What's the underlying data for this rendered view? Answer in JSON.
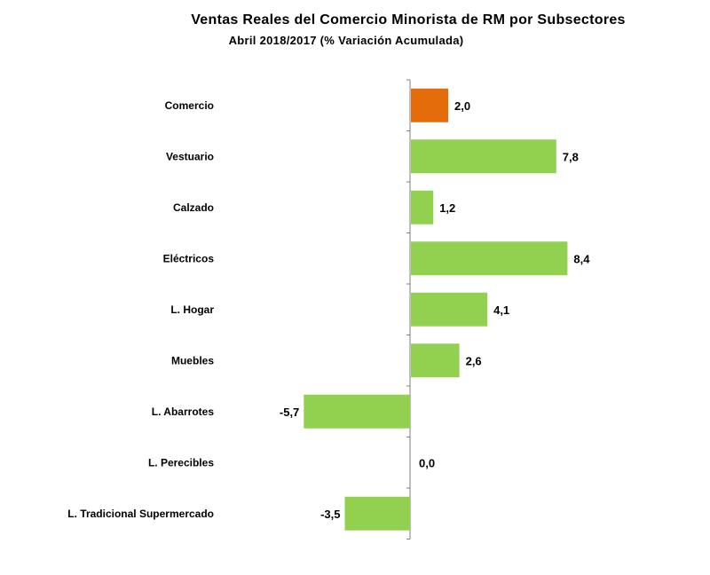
{
  "chart_data": {
    "type": "bar",
    "orientation": "horizontal",
    "title": "Ventas Reales del Comercio Minorista de RM por Subsectores",
    "subtitle": "Abril    2018/2017 (% Variación Acumulada)",
    "categories": [
      "Comercio",
      "Vestuario",
      "Calzado",
      "Eléctricos",
      "L. Hogar",
      "Muebles",
      "L. Abarrotes",
      "L. Perecibles",
      "L. Tradicional Supermercado"
    ],
    "values": [
      2.0,
      7.8,
      1.2,
      8.4,
      4.1,
      2.6,
      -5.7,
      0.0,
      -3.5
    ],
    "value_labels": [
      "2,0",
      "7,8",
      "1,2",
      "8,4",
      "4,1",
      "2,6",
      "-5,7",
      "0,0",
      "-3,5"
    ],
    "bar_colors": [
      "#E46C0A",
      "#92D050",
      "#92D050",
      "#92D050",
      "#92D050",
      "#92D050",
      "#92D050",
      "#92D050",
      "#92D050"
    ],
    "highlight_color": "#E46C0A",
    "default_color": "#92D050",
    "xlim": [
      -7.5,
      8.4
    ],
    "grid": false,
    "legend": "none"
  }
}
